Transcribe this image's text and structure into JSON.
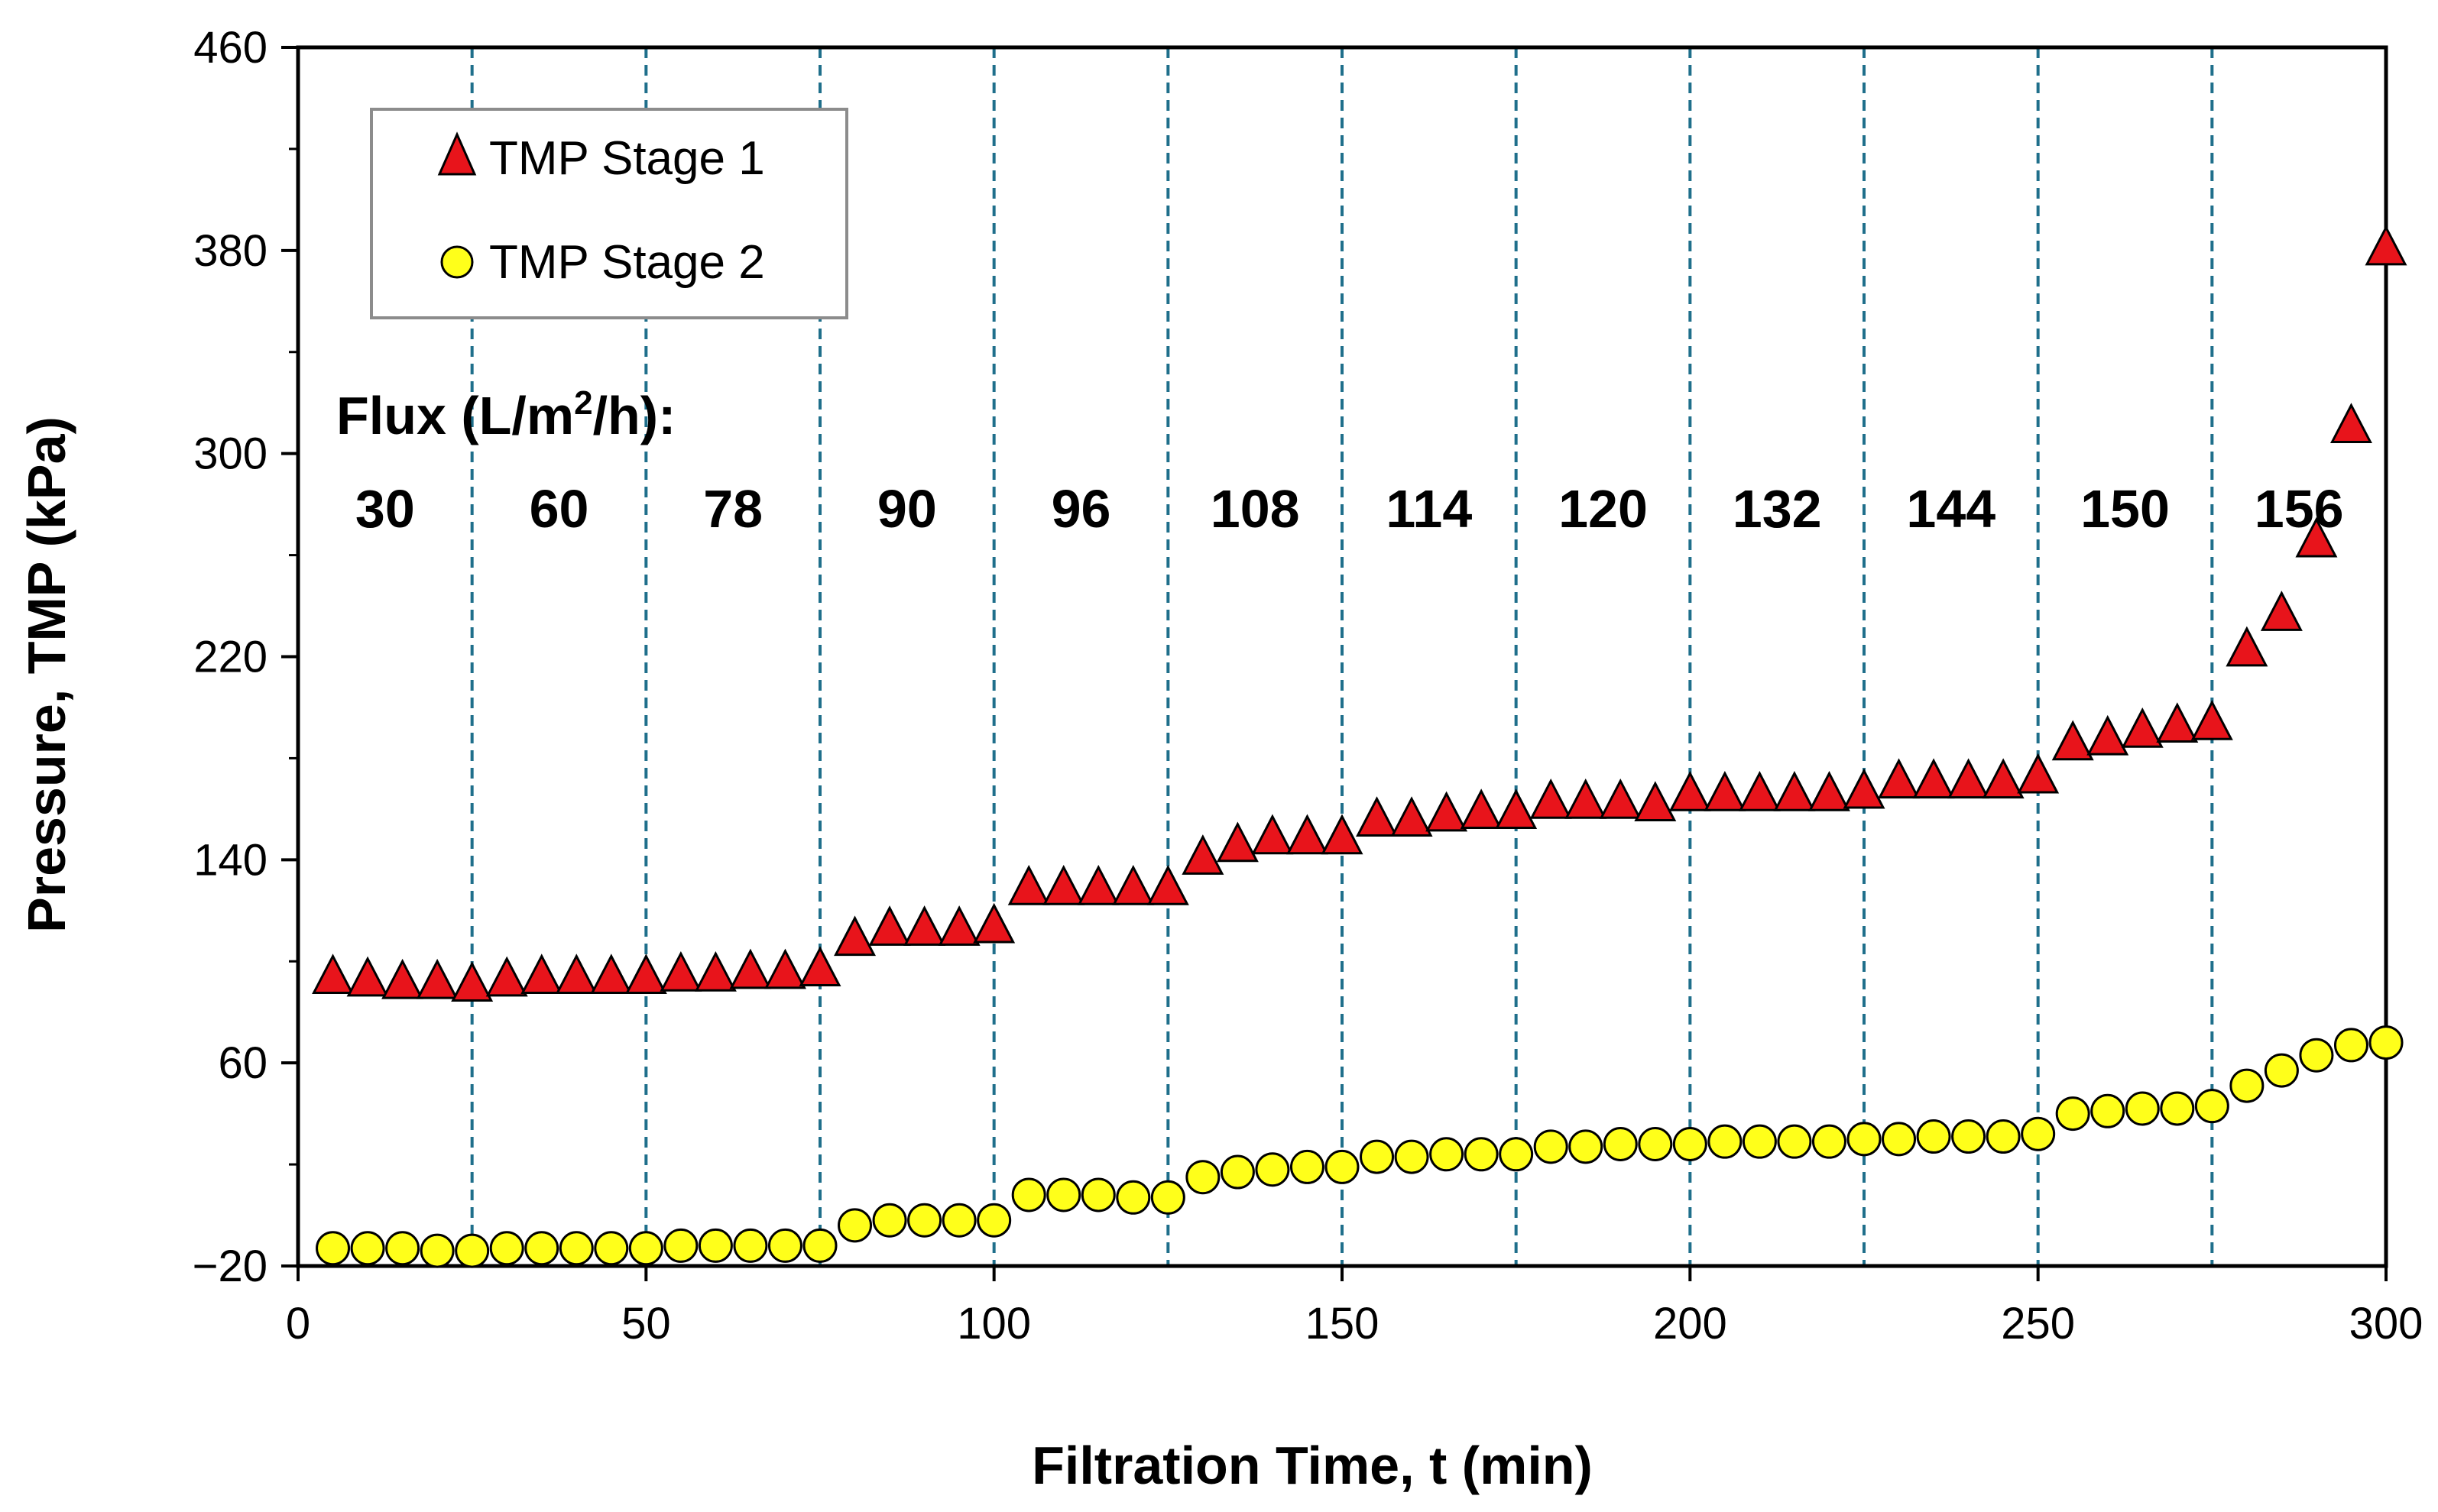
{
  "chart_data": {
    "type": "scatter",
    "title": "",
    "xlabel": "Filtration Time, t (min)",
    "ylabel": "Pressure, TMP (kPa)",
    "xlim": [
      0,
      300
    ],
    "ylim": [
      -20,
      460
    ],
    "xticks": [
      0,
      50,
      100,
      150,
      200,
      250,
      300
    ],
    "yticks": [
      -20,
      60,
      140,
      220,
      300,
      380,
      460
    ],
    "xtick_labels": [
      "0",
      "50",
      "100",
      "150",
      "200",
      "250",
      "300"
    ],
    "ytick_labels": [
      "−20",
      "60",
      "140",
      "220",
      "300",
      "380",
      "460"
    ],
    "grid": false,
    "legend_position": "top-left",
    "stage_boundaries": [
      25,
      50,
      75,
      100,
      125,
      150,
      175,
      200,
      225,
      250,
      275
    ],
    "flux_header": {
      "prefix": "Flux (L/m",
      "superscript": "2",
      "suffix": "/h):"
    },
    "flux_values": [
      "30",
      "60",
      "78",
      "90",
      "96",
      "108",
      "114",
      "120",
      "132",
      "144",
      "150",
      "156"
    ],
    "colors": {
      "stage1": "#e8141b",
      "stage2": "#ffff1a",
      "boundary": "#1f6f8b"
    },
    "series": [
      {
        "name": "TMP Stage 1",
        "marker": "triangle",
        "x": [
          5,
          10,
          15,
          20,
          25,
          30,
          35,
          40,
          45,
          50,
          55,
          60,
          65,
          70,
          75,
          80,
          85,
          90,
          95,
          100,
          105,
          110,
          115,
          120,
          125,
          130,
          135,
          140,
          145,
          150,
          155,
          160,
          165,
          170,
          175,
          180,
          185,
          190,
          195,
          200,
          205,
          210,
          215,
          220,
          225,
          230,
          235,
          240,
          245,
          250,
          255,
          260,
          265,
          270,
          275,
          280,
          285,
          290,
          295,
          300
        ],
        "values": [
          93,
          92,
          91,
          91,
          90,
          92,
          93,
          93,
          93,
          93,
          94,
          94,
          95,
          95,
          96,
          108,
          112,
          112,
          112,
          113,
          128,
          128,
          128,
          128,
          128,
          140,
          145,
          148,
          148,
          148,
          155,
          155,
          157,
          158,
          158,
          162,
          162,
          162,
          161,
          165,
          165,
          165,
          165,
          165,
          166,
          170,
          170,
          170,
          170,
          172,
          185,
          187,
          190,
          192,
          193,
          222,
          236,
          265,
          310,
          380
        ]
      },
      {
        "name": "TMP Stage 2",
        "marker": "circle",
        "x": [
          5,
          10,
          15,
          20,
          25,
          30,
          35,
          40,
          45,
          50,
          55,
          60,
          65,
          70,
          75,
          80,
          85,
          90,
          95,
          100,
          105,
          110,
          115,
          120,
          125,
          130,
          135,
          140,
          145,
          150,
          155,
          160,
          165,
          170,
          175,
          180,
          185,
          190,
          195,
          200,
          205,
          210,
          215,
          220,
          225,
          230,
          235,
          240,
          245,
          250,
          255,
          260,
          265,
          270,
          275,
          280,
          285,
          290,
          295,
          300
        ],
        "values": [
          -13,
          -13,
          -13,
          -14,
          -14,
          -13,
          -13,
          -13,
          -13,
          -13,
          -12,
          -12,
          -12,
          -12,
          -12,
          -4,
          -2,
          -2,
          -2,
          -2,
          8,
          8,
          8,
          7,
          7,
          15,
          17,
          18,
          19,
          19,
          23,
          23,
          24,
          24,
          24,
          27,
          27,
          28,
          28,
          28,
          29,
          29,
          29,
          29,
          30,
          30,
          31,
          31,
          31,
          32,
          40,
          41,
          42,
          42,
          43,
          51,
          57,
          63,
          67,
          68
        ]
      }
    ]
  }
}
